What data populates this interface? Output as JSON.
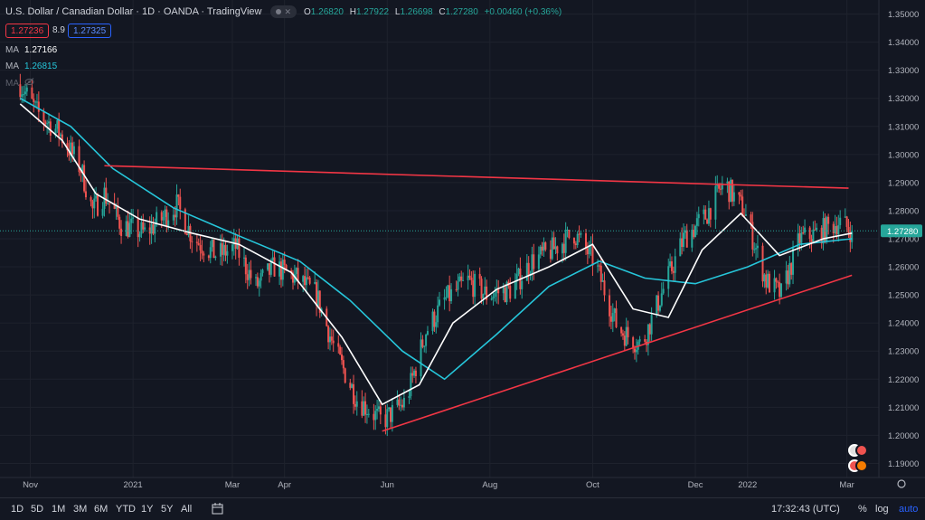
{
  "header": {
    "title": "U.S. Dollar / Canadian Dollar · 1D · OANDA · TradingView",
    "open_label": "O",
    "open": "1.26820",
    "high_label": "H",
    "high": "1.27922",
    "low_label": "L",
    "low": "1.26698",
    "close_label": "C",
    "close": "1.27280",
    "change": "+0.00460 (+0.36%)"
  },
  "quote": {
    "bid": "1.27236",
    "spread": "8.9",
    "ask": "1.27325"
  },
  "indicators": [
    {
      "label": "MA",
      "value": "1.27166",
      "color": "#ffffff"
    },
    {
      "label": "MA",
      "value": "1.26815",
      "color": "#26c6da"
    },
    {
      "label": "MA",
      "value": "",
      "color": "#5d606b"
    }
  ],
  "toolbar": {
    "timeframes": [
      "1D",
      "5D",
      "1M",
      "3M",
      "6M",
      "YTD",
      "1Y",
      "5Y",
      "All"
    ],
    "time": "17:32:43 (UTC)",
    "percent": "%",
    "log": "log",
    "auto": "auto"
  },
  "colors": {
    "up": "#26a69a",
    "down": "#ef5350",
    "ma_fast": "#ffffff",
    "ma_slow": "#26c6da",
    "trendline": "#f23645",
    "background": "#131722"
  },
  "chart_data": {
    "type": "candlestick",
    "symbol": "USDCAD",
    "ylim": [
      1.185,
      1.355
    ],
    "y_ticks": [
      "1.35000",
      "1.34000",
      "1.33000",
      "1.32000",
      "1.31000",
      "1.30000",
      "1.29000",
      "1.28000",
      "1.27000",
      "1.26000",
      "1.25000",
      "1.24000",
      "1.23000",
      "1.22000",
      "1.21000",
      "1.20000",
      "1.19000"
    ],
    "x_ticks": [
      "Nov",
      "2021",
      "Mar",
      "Apr",
      "Jun",
      "Aug",
      "Oct",
      "Dec",
      "2022",
      "Mar"
    ],
    "last_price": "1.27280",
    "trendlines": [
      {
        "from": [
          "2020-12-15",
          1.296
        ],
        "to": [
          "2022-03-02",
          1.288
        ]
      },
      {
        "from": [
          "2021-05-29",
          1.2015
        ],
        "to": [
          "2022-03-04",
          1.257
        ]
      }
    ],
    "path": [
      [
        "2020-10-26",
        1.325
      ],
      [
        "2020-11-05",
        1.315
      ],
      [
        "2020-11-18",
        1.308
      ],
      [
        "2020-12-01",
        1.295
      ],
      [
        "2020-12-08",
        1.28
      ],
      [
        "2020-12-15",
        1.286
      ],
      [
        "2020-12-25",
        1.275
      ],
      [
        "2021-01-08",
        1.272
      ],
      [
        "2021-01-18",
        1.277
      ],
      [
        "2021-01-27",
        1.282
      ],
      [
        "2021-02-06",
        1.27
      ],
      [
        "2021-02-20",
        1.264
      ],
      [
        "2021-03-03",
        1.267
      ],
      [
        "2021-03-15",
        1.253
      ],
      [
        "2021-03-26",
        1.26
      ],
      [
        "2021-04-08",
        1.256
      ],
      [
        "2021-04-20",
        1.25
      ],
      [
        "2021-05-01",
        1.23
      ],
      [
        "2021-05-14",
        1.213
      ],
      [
        "2021-05-29",
        1.205
      ],
      [
        "2021-06-12",
        1.212
      ],
      [
        "2021-06-24",
        1.237
      ],
      [
        "2021-07-05",
        1.248
      ],
      [
        "2021-07-19",
        1.255
      ],
      [
        "2021-07-30",
        1.25
      ],
      [
        "2021-08-14",
        1.252
      ],
      [
        "2021-08-26",
        1.262
      ],
      [
        "2021-09-07",
        1.266
      ],
      [
        "2021-09-20",
        1.272
      ],
      [
        "2021-10-02",
        1.262
      ],
      [
        "2021-10-16",
        1.238
      ],
      [
        "2021-10-30",
        1.232
      ],
      [
        "2021-11-12",
        1.252
      ],
      [
        "2021-11-24",
        1.27
      ],
      [
        "2021-12-07",
        1.278
      ],
      [
        "2021-12-18",
        1.29
      ],
      [
        "2021-12-30",
        1.28
      ],
      [
        "2022-01-12",
        1.255
      ],
      [
        "2022-01-21",
        1.25
      ],
      [
        "2022-02-01",
        1.27
      ],
      [
        "2022-02-12",
        1.272
      ],
      [
        "2022-02-24",
        1.276
      ],
      [
        "2022-03-04",
        1.2728
      ]
    ],
    "ma_fast_path": [
      [
        "2020-10-26",
        1.318
      ],
      [
        "2020-11-20",
        1.305
      ],
      [
        "2020-12-10",
        1.286
      ],
      [
        "2021-01-05",
        1.277
      ],
      [
        "2021-02-05",
        1.272
      ],
      [
        "2021-03-05",
        1.268
      ],
      [
        "2021-04-05",
        1.258
      ],
      [
        "2021-05-05",
        1.235
      ],
      [
        "2021-05-29",
        1.211
      ],
      [
        "2021-06-20",
        1.218
      ],
      [
        "2021-07-10",
        1.24
      ],
      [
        "2021-08-05",
        1.252
      ],
      [
        "2021-09-05",
        1.26
      ],
      [
        "2021-10-01",
        1.268
      ],
      [
        "2021-10-25",
        1.245
      ],
      [
        "2021-11-15",
        1.242
      ],
      [
        "2021-12-05",
        1.266
      ],
      [
        "2021-12-28",
        1.279
      ],
      [
        "2022-01-20",
        1.264
      ],
      [
        "2022-02-15",
        1.27
      ],
      [
        "2022-03-04",
        1.272
      ]
    ],
    "ma_slow_path": [
      [
        "2020-10-26",
        1.32
      ],
      [
        "2020-11-25",
        1.31
      ],
      [
        "2020-12-20",
        1.295
      ],
      [
        "2021-01-25",
        1.281
      ],
      [
        "2021-03-01",
        1.272
      ],
      [
        "2021-04-10",
        1.262
      ],
      [
        "2021-05-10",
        1.248
      ],
      [
        "2021-06-10",
        1.23
      ],
      [
        "2021-07-05",
        1.22
      ],
      [
        "2021-08-05",
        1.236
      ],
      [
        "2021-09-05",
        1.253
      ],
      [
        "2021-10-05",
        1.262
      ],
      [
        "2021-11-01",
        1.256
      ],
      [
        "2021-12-01",
        1.254
      ],
      [
        "2022-01-01",
        1.26
      ],
      [
        "2022-02-01",
        1.268
      ],
      [
        "2022-03-04",
        1.27
      ]
    ]
  }
}
